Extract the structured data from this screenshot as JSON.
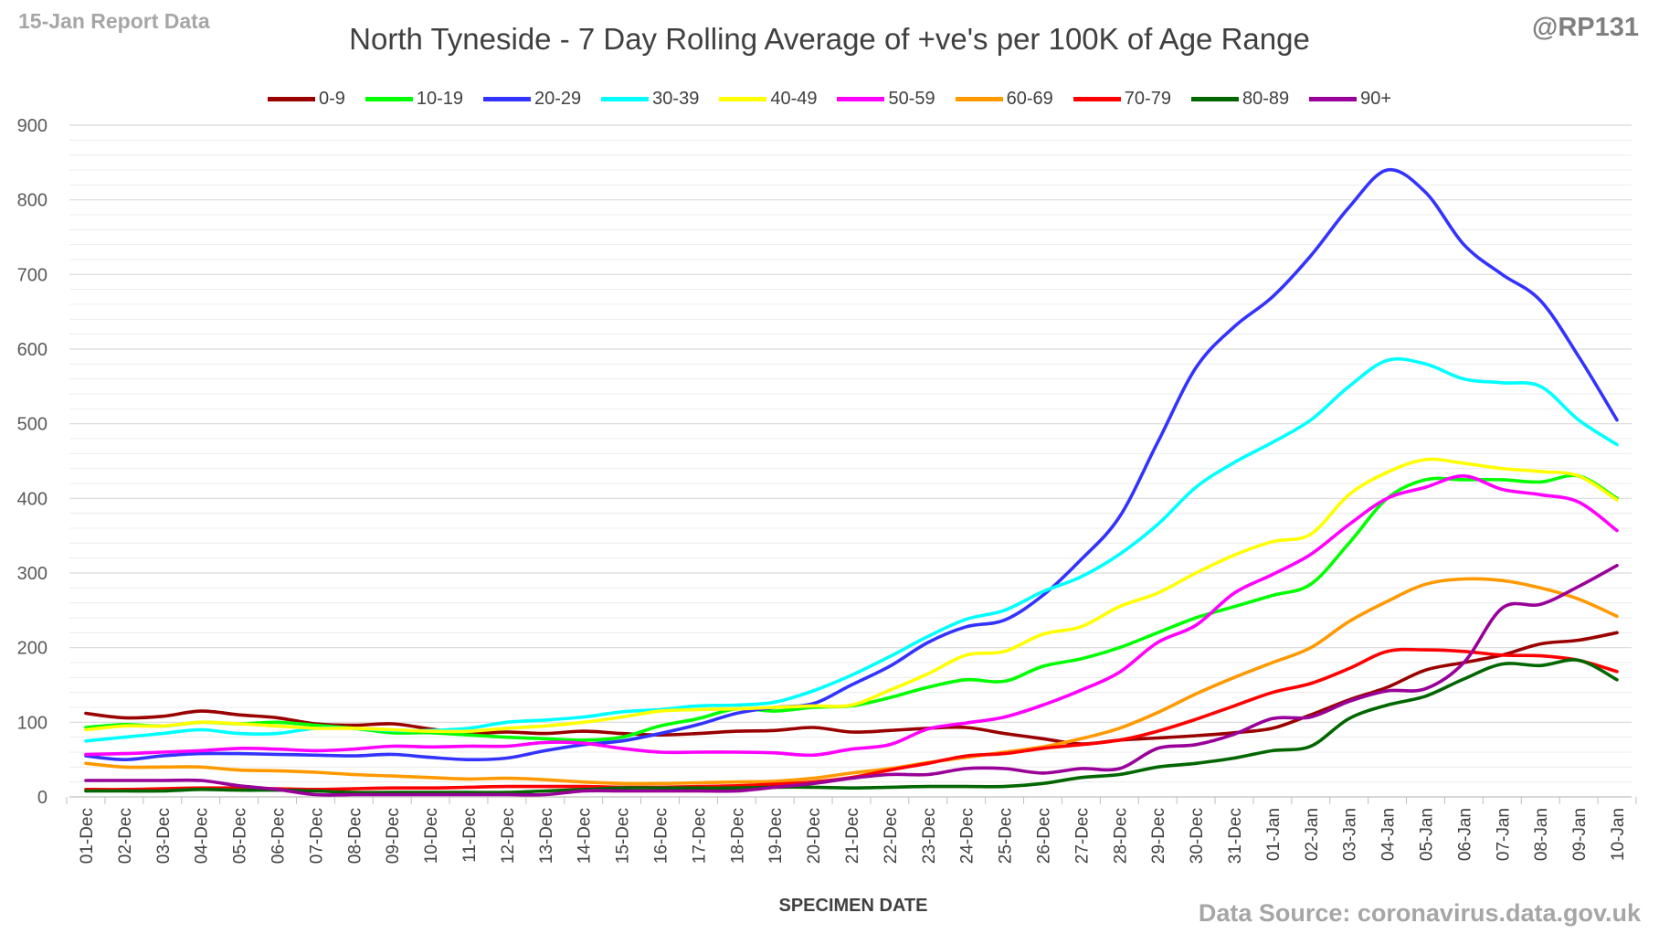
{
  "header": {
    "report_label": "15-Jan Report Data",
    "handle": "@RP131",
    "source": "Data Source: coronavirus.data.gov.uk"
  },
  "chart_data": {
    "type": "line",
    "title": "North Tyneside - 7 Day Rolling Average of +ve's per 100K of Age Range",
    "xlabel": "SPECIMEN DATE",
    "ylabel": "",
    "ylim": [
      0,
      900
    ],
    "yticks": [
      0,
      100,
      200,
      300,
      400,
      500,
      600,
      700,
      800,
      900
    ],
    "grid": true,
    "legend_position": "top",
    "categories": [
      "01-Dec",
      "02-Dec",
      "03-Dec",
      "04-Dec",
      "05-Dec",
      "06-Dec",
      "07-Dec",
      "08-Dec",
      "09-Dec",
      "10-Dec",
      "11-Dec",
      "12-Dec",
      "13-Dec",
      "14-Dec",
      "15-Dec",
      "16-Dec",
      "17-Dec",
      "18-Dec",
      "19-Dec",
      "20-Dec",
      "21-Dec",
      "22-Dec",
      "23-Dec",
      "24-Dec",
      "25-Dec",
      "26-Dec",
      "27-Dec",
      "28-Dec",
      "29-Dec",
      "30-Dec",
      "31-Dec",
      "01-Jan",
      "02-Jan",
      "03-Jan",
      "04-Jan",
      "05-Jan",
      "06-Jan",
      "07-Jan",
      "08-Jan",
      "09-Jan",
      "10-Jan"
    ],
    "series": [
      {
        "name": "0-9",
        "color": "#990000",
        "values": [
          112,
          106,
          108,
          115,
          110,
          106,
          98,
          96,
          98,
          91,
          85,
          87,
          85,
          88,
          85,
          83,
          85,
          88,
          89,
          93,
          87,
          89,
          92,
          93,
          85,
          78,
          71,
          76,
          79,
          82,
          86,
          92,
          110,
          130,
          147,
          170,
          180,
          190,
          205,
          210,
          220
        ]
      },
      {
        "name": "10-19",
        "color": "#00ff00",
        "values": [
          93,
          97,
          95,
          100,
          98,
          100,
          96,
          92,
          86,
          86,
          83,
          80,
          78,
          76,
          80,
          95,
          105,
          118,
          115,
          120,
          122,
          133,
          147,
          157,
          155,
          175,
          185,
          200,
          220,
          240,
          255,
          270,
          285,
          340,
          400,
          425,
          425,
          425,
          422,
          430,
          400
        ]
      },
      {
        "name": "20-29",
        "color": "#3333ff",
        "values": [
          55,
          50,
          55,
          58,
          58,
          57,
          56,
          55,
          57,
          53,
          50,
          52,
          62,
          70,
          75,
          85,
          97,
          112,
          120,
          125,
          150,
          175,
          207,
          228,
          237,
          270,
          318,
          375,
          475,
          575,
          630,
          670,
          725,
          790,
          840,
          810,
          740,
          700,
          665,
          590,
          505
        ]
      },
      {
        "name": "30-39",
        "color": "#00ffff",
        "values": [
          75,
          80,
          85,
          90,
          85,
          85,
          92,
          92,
          89,
          89,
          92,
          100,
          103,
          107,
          114,
          117,
          122,
          123,
          127,
          142,
          163,
          188,
          215,
          238,
          250,
          275,
          295,
          325,
          365,
          415,
          448,
          475,
          505,
          550,
          585,
          580,
          560,
          555,
          550,
          505,
          472
        ]
      },
      {
        "name": "40-49",
        "color": "#ffff00",
        "values": [
          90,
          95,
          95,
          100,
          98,
          95,
          92,
          92,
          90,
          88,
          88,
          92,
          95,
          100,
          107,
          115,
          117,
          118,
          120,
          122,
          123,
          143,
          165,
          190,
          195,
          218,
          228,
          255,
          273,
          300,
          324,
          342,
          352,
          405,
          435,
          452,
          447,
          440,
          436,
          430,
          398
        ]
      },
      {
        "name": "50-59",
        "color": "#ff00ff",
        "values": [
          57,
          58,
          60,
          62,
          65,
          64,
          62,
          64,
          68,
          67,
          68,
          68,
          73,
          72,
          65,
          60,
          60,
          60,
          59,
          56,
          64,
          70,
          91,
          99,
          107,
          123,
          143,
          167,
          207,
          230,
          273,
          298,
          325,
          365,
          400,
          415,
          430,
          412,
          405,
          395,
          357
        ]
      },
      {
        "name": "60-69",
        "color": "#ff9900",
        "values": [
          45,
          40,
          40,
          40,
          36,
          35,
          33,
          30,
          28,
          26,
          24,
          25,
          23,
          20,
          18,
          18,
          19,
          20,
          21,
          25,
          32,
          38,
          46,
          53,
          60,
          67,
          78,
          92,
          113,
          138,
          160,
          180,
          200,
          235,
          262,
          285,
          292,
          290,
          280,
          265,
          242
        ]
      },
      {
        "name": "70-79",
        "color": "#ff0000",
        "values": [
          10,
          10,
          11,
          12,
          12,
          11,
          10,
          11,
          12,
          12,
          13,
          14,
          14,
          14,
          13,
          13,
          14,
          15,
          17,
          20,
          26,
          36,
          45,
          55,
          58,
          65,
          70,
          76,
          88,
          104,
          122,
          140,
          152,
          172,
          195,
          197,
          195,
          190,
          189,
          183,
          168
        ]
      },
      {
        "name": "80-89",
        "color": "#006600",
        "values": [
          8,
          8,
          8,
          10,
          9,
          9,
          8,
          6,
          6,
          6,
          6,
          6,
          8,
          10,
          12,
          12,
          12,
          12,
          13,
          13,
          12,
          13,
          14,
          14,
          14,
          18,
          26,
          30,
          40,
          45,
          52,
          62,
          68,
          105,
          123,
          135,
          158,
          178,
          176,
          183,
          157
        ]
      },
      {
        "name": "90+",
        "color": "#990099",
        "values": [
          22,
          22,
          22,
          22,
          15,
          10,
          3,
          3,
          3,
          3,
          3,
          3,
          3,
          8,
          8,
          8,
          8,
          8,
          13,
          18,
          25,
          30,
          30,
          38,
          38,
          32,
          38,
          38,
          65,
          70,
          84,
          105,
          107,
          128,
          142,
          145,
          180,
          253,
          258,
          282,
          310
        ]
      }
    ]
  }
}
